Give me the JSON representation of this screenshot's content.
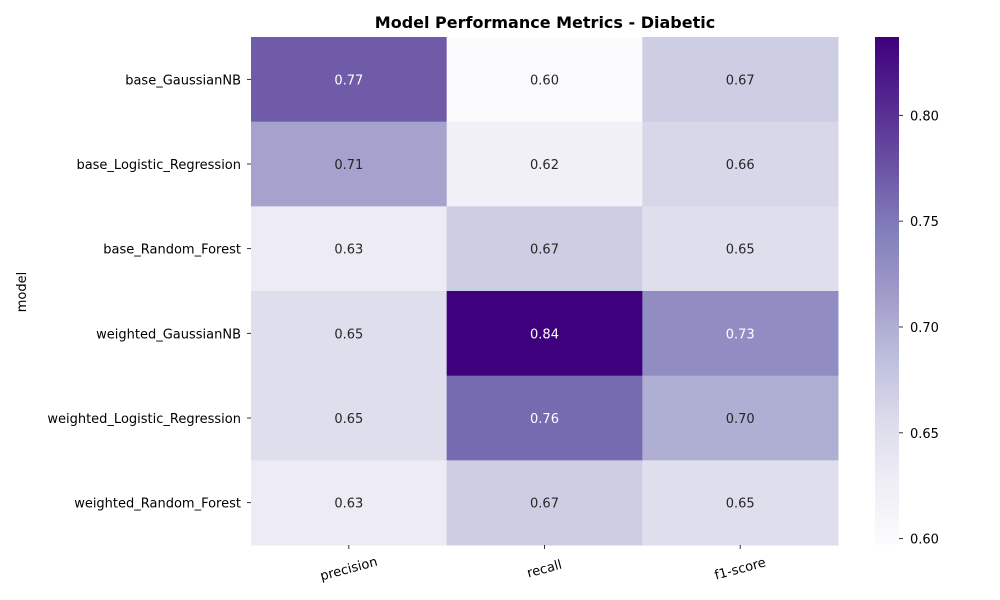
{
  "chart_data": {
    "type": "heatmap",
    "title": "Model Performance Metrics - Diabetic",
    "ylabel": "model",
    "xlabel": "",
    "x_categories": [
      "precision",
      "recall",
      "f1-score"
    ],
    "y_categories": [
      "base_GaussianNB",
      "base_Logistic_Regression",
      "base_Random_Forest",
      "weighted_GaussianNB",
      "weighted_Logistic_Regression",
      "weighted_Random_Forest"
    ],
    "values": [
      [
        0.77,
        0.6,
        0.67
      ],
      [
        0.71,
        0.62,
        0.66
      ],
      [
        0.63,
        0.67,
        0.65
      ],
      [
        0.65,
        0.84,
        0.73
      ],
      [
        0.65,
        0.76,
        0.7
      ],
      [
        0.63,
        0.67,
        0.65
      ]
    ],
    "annotation_format": "0.00",
    "colormap": "Purples",
    "color_range": [
      0.597,
      0.837
    ],
    "colorbar_ticks": [
      "0.60",
      "0.65",
      "0.70",
      "0.75",
      "0.80"
    ],
    "colorbar_tick_values": [
      0.6,
      0.65,
      0.7,
      0.75,
      0.8
    ]
  }
}
